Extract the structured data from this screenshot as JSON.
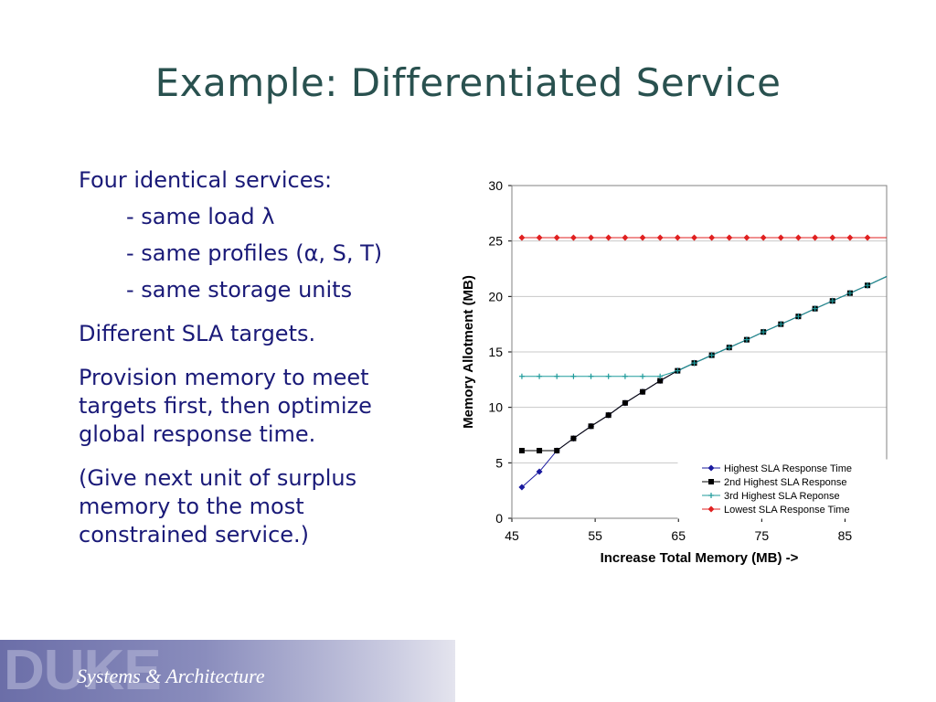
{
  "slide": {
    "title": "Example: Differentiated Service",
    "bullets": [
      "Four identical services:",
      "- same load λ",
      "- same profiles (α, S, T)",
      "- same storage units",
      "Different SLA targets.",
      "Provision memory to meet",
      "targets first, then optimize",
      "global response time.",
      "(Give next unit of surplus",
      "memory to the most",
      "constrained service.)"
    ]
  },
  "footer": {
    "logo": "DUKE",
    "caption": "Systems & Architecture"
  },
  "colors": {
    "title": "#29514f",
    "body": "#1a1a78",
    "series_highest": "#1a1a9e",
    "series_2nd": "#000000",
    "series_3rd": "#1f9b9b",
    "series_lowest": "#e02020"
  },
  "chart_data": {
    "type": "line",
    "xlabel": "Increase Total Memory (MB) ->",
    "ylabel": "Memory Allotment (MB)",
    "xlim": [
      45,
      90
    ],
    "ylim": [
      0,
      30
    ],
    "xticks": [
      "45",
      "55",
      "65",
      "75",
      "85"
    ],
    "yticks": [
      "0",
      "5",
      "10",
      "15",
      "20",
      "25",
      "30"
    ],
    "grid": "horizontal",
    "legend_position": "bottom-right",
    "series": [
      {
        "name": "Highest SLA Response Time",
        "color": "#1a1a9e",
        "marker": "diamond",
        "points": [
          [
            46.2,
            2.8
          ],
          [
            48.3,
            4.2
          ],
          [
            50.4,
            6.1
          ],
          [
            52.4,
            7.2
          ],
          [
            54.5,
            8.3
          ],
          [
            56.6,
            9.3
          ],
          [
            58.6,
            10.4
          ],
          [
            60.7,
            11.4
          ],
          [
            62.8,
            12.4
          ],
          [
            64.9,
            13.3
          ],
          [
            66.9,
            14.0
          ],
          [
            69.0,
            14.7
          ],
          [
            71.1,
            15.4
          ],
          [
            73.2,
            16.1
          ],
          [
            75.2,
            16.8
          ],
          [
            77.3,
            17.5
          ],
          [
            79.4,
            18.2
          ],
          [
            81.4,
            18.9
          ],
          [
            83.5,
            19.6
          ],
          [
            85.6,
            20.3
          ],
          [
            87.7,
            21.0
          ],
          [
            90.0,
            21.8
          ]
        ]
      },
      {
        "name": "2nd Highest SLA Response",
        "color": "#000000",
        "marker": "square",
        "points": [
          [
            46.2,
            6.1
          ],
          [
            48.3,
            6.1
          ],
          [
            50.4,
            6.1
          ],
          [
            52.4,
            7.2
          ],
          [
            54.5,
            8.3
          ],
          [
            56.6,
            9.3
          ],
          [
            58.6,
            10.4
          ],
          [
            60.7,
            11.4
          ],
          [
            62.8,
            12.4
          ],
          [
            64.9,
            13.3
          ],
          [
            66.9,
            14.0
          ],
          [
            69.0,
            14.7
          ],
          [
            71.1,
            15.4
          ],
          [
            73.2,
            16.1
          ],
          [
            75.2,
            16.8
          ],
          [
            77.3,
            17.5
          ],
          [
            79.4,
            18.2
          ],
          [
            81.4,
            18.9
          ],
          [
            83.5,
            19.6
          ],
          [
            85.6,
            20.3
          ],
          [
            87.7,
            21.0
          ],
          [
            90.0,
            21.8
          ]
        ]
      },
      {
        "name": "3rd Highest SLA Reponse",
        "color": "#1f9b9b",
        "marker": "plus",
        "points": [
          [
            46.2,
            12.8
          ],
          [
            48.3,
            12.8
          ],
          [
            50.4,
            12.8
          ],
          [
            52.4,
            12.8
          ],
          [
            54.5,
            12.8
          ],
          [
            56.6,
            12.8
          ],
          [
            58.6,
            12.8
          ],
          [
            60.7,
            12.8
          ],
          [
            62.8,
            12.8
          ],
          [
            64.9,
            13.3
          ],
          [
            66.9,
            14.0
          ],
          [
            69.0,
            14.7
          ],
          [
            71.1,
            15.4
          ],
          [
            73.2,
            16.1
          ],
          [
            75.2,
            16.8
          ],
          [
            77.3,
            17.5
          ],
          [
            79.4,
            18.2
          ],
          [
            81.4,
            18.9
          ],
          [
            83.5,
            19.6
          ],
          [
            85.6,
            20.3
          ],
          [
            87.7,
            21.0
          ],
          [
            90.0,
            21.8
          ]
        ]
      },
      {
        "name": "Lowest SLA Response Time",
        "color": "#e02020",
        "marker": "diamond",
        "points": [
          [
            46.2,
            25.3
          ],
          [
            48.3,
            25.3
          ],
          [
            50.4,
            25.3
          ],
          [
            52.4,
            25.3
          ],
          [
            54.5,
            25.3
          ],
          [
            56.6,
            25.3
          ],
          [
            58.6,
            25.3
          ],
          [
            60.7,
            25.3
          ],
          [
            62.8,
            25.3
          ],
          [
            64.9,
            25.3
          ],
          [
            66.9,
            25.3
          ],
          [
            69.0,
            25.3
          ],
          [
            71.1,
            25.3
          ],
          [
            73.2,
            25.3
          ],
          [
            75.2,
            25.3
          ],
          [
            77.3,
            25.3
          ],
          [
            79.4,
            25.3
          ],
          [
            81.4,
            25.3
          ],
          [
            83.5,
            25.3
          ],
          [
            85.6,
            25.3
          ],
          [
            87.7,
            25.3
          ],
          [
            90.0,
            25.3
          ]
        ]
      }
    ]
  }
}
